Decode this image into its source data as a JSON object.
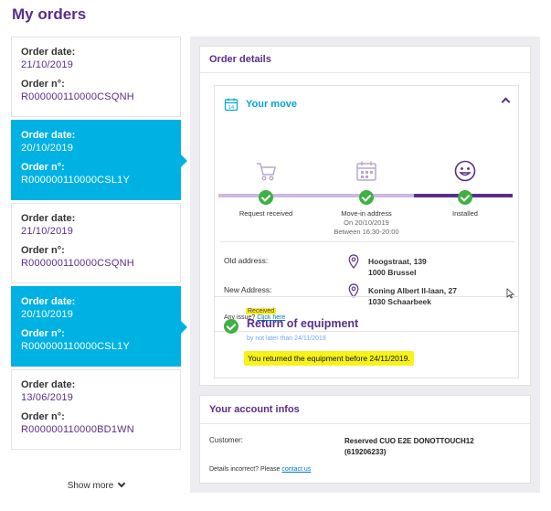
{
  "page_title": "My orders",
  "orders": [
    {
      "date_label": "Order date:",
      "date": "21/10/2019",
      "number_label": "Order n°:",
      "number": "R000000110000CSQNH",
      "active": false
    },
    {
      "date_label": "Order date:",
      "date": "20/10/2019",
      "number_label": "Order n°:",
      "number": "R000000110000CSL1Y",
      "active": true
    },
    {
      "date_label": "Order date:",
      "date": "21/10/2019",
      "number_label": "Order n°:",
      "number": "R000000110000CSQNH",
      "active": false
    },
    {
      "date_label": "Order date:",
      "date": "20/10/2019",
      "number_label": "Order n°:",
      "number": "R000000110000CSL1Y",
      "active": true
    },
    {
      "date_label": "Order date:",
      "date": "13/06/2019",
      "number_label": "Order n°:",
      "number": "R000000110000BD1WN",
      "active": false
    }
  ],
  "show_more": "Show more",
  "details": {
    "title": "Order details",
    "move": {
      "title": "Your move",
      "steps": [
        {
          "label": "Request received",
          "sub1": "",
          "sub2": ""
        },
        {
          "label": "Move-in address",
          "sub1": "On 20/10/2019",
          "sub2": "Between 16:30-20:00"
        },
        {
          "label": "Installed",
          "sub1": "",
          "sub2": ""
        }
      ],
      "old_address_label": "Old address:",
      "old_address_line1": "Hoogstraat, 139",
      "old_address_line2": "1000 Brussel",
      "new_address_label": "New Address:",
      "new_address_line1": "Koning Albert II-laan, 27",
      "new_address_line2": "1030 Schaarbeek",
      "issue_text": "Any issue?",
      "issue_link": "Click here"
    },
    "equipment": {
      "status": "Received",
      "title": "Return of equipment",
      "subtitle": "by not later than 24/11/2019",
      "message": "You returned the equipment before 24/11/2019."
    }
  },
  "account": {
    "title": "Your account infos",
    "customer_label": "Customer:",
    "customer_name": "Reserved CUO E2E DONOTTOUCH12",
    "customer_id": "(619206233)",
    "incorrect_text": "Details incorrect? Please",
    "contact_link": "contact us"
  },
  "colors": {
    "brand_purple": "#5a2d8c",
    "active_blue": "#00b2e3",
    "success_green": "#3fb043",
    "highlight": "#f7f21a"
  }
}
